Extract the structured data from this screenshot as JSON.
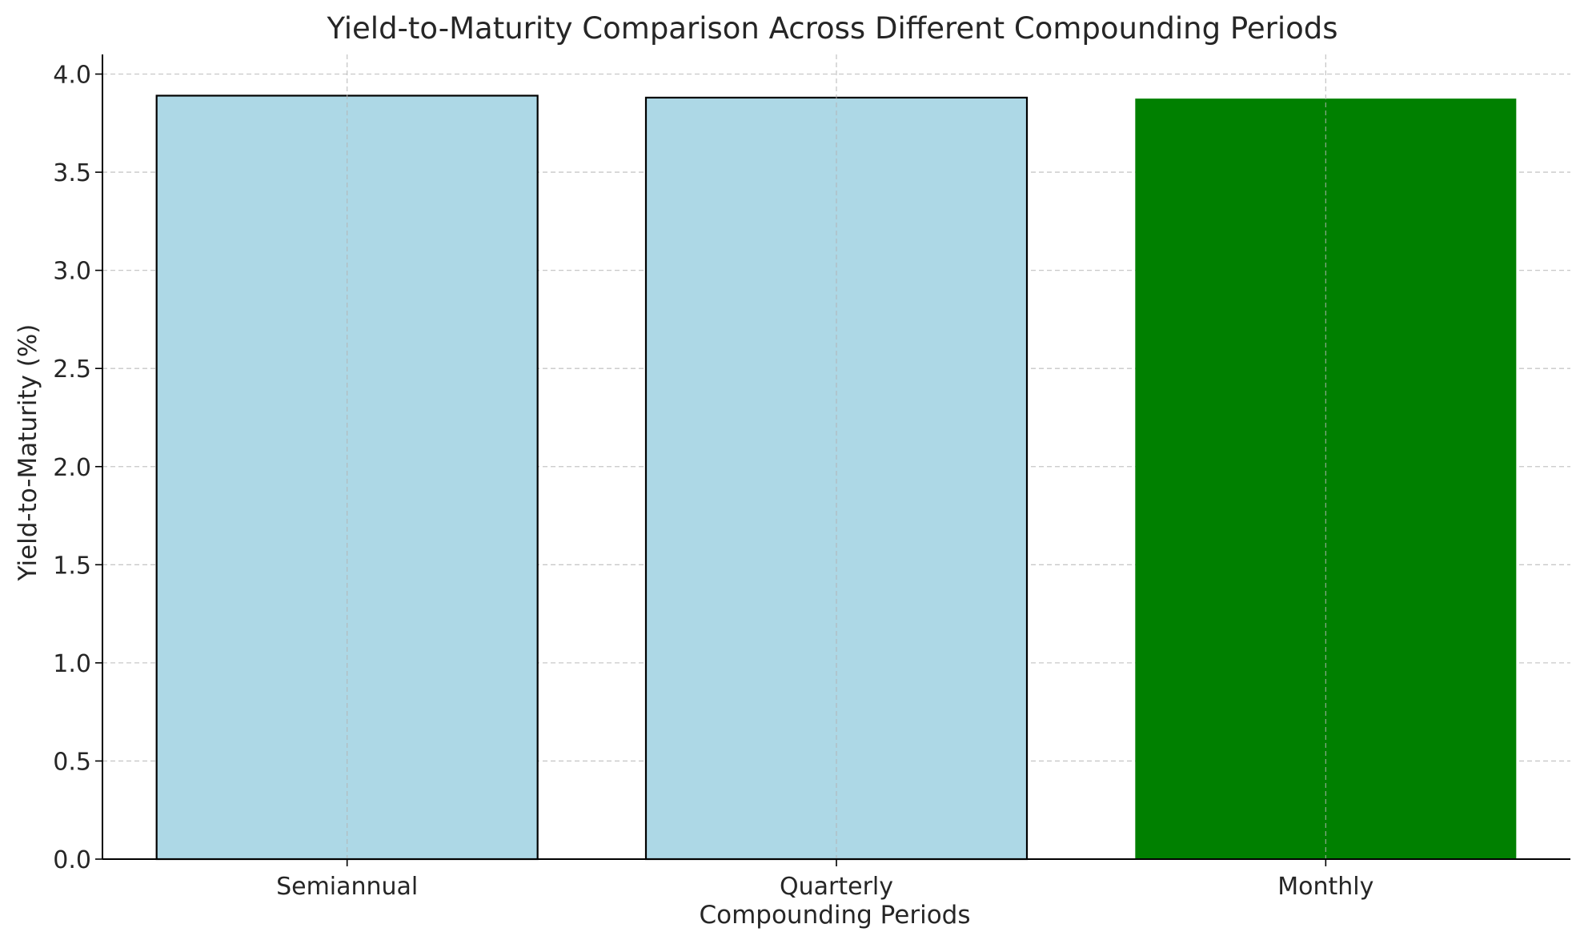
{
  "chart_data": {
    "type": "bar",
    "title": "Yield-to-Maturity Comparison Across Different Compounding Periods",
    "xlabel": "Compounding Periods",
    "ylabel": "Yield-to-Maturity (%)",
    "categories": [
      "Semiannual",
      "Quarterly",
      "Monthly"
    ],
    "values": [
      3.89,
      3.88,
      3.875
    ],
    "bar_colors": [
      "#add8e6",
      "#add8e6",
      "#008000"
    ],
    "bar_edge": [
      "#000000",
      "#000000",
      "none"
    ],
    "ylim": [
      0,
      4.1
    ],
    "yticks": [
      "0.0",
      "0.5",
      "1.0",
      "1.5",
      "2.0",
      "2.5",
      "3.0",
      "3.5",
      "4.0"
    ],
    "grid": true,
    "grid_style": "dashed",
    "legend": "none"
  }
}
